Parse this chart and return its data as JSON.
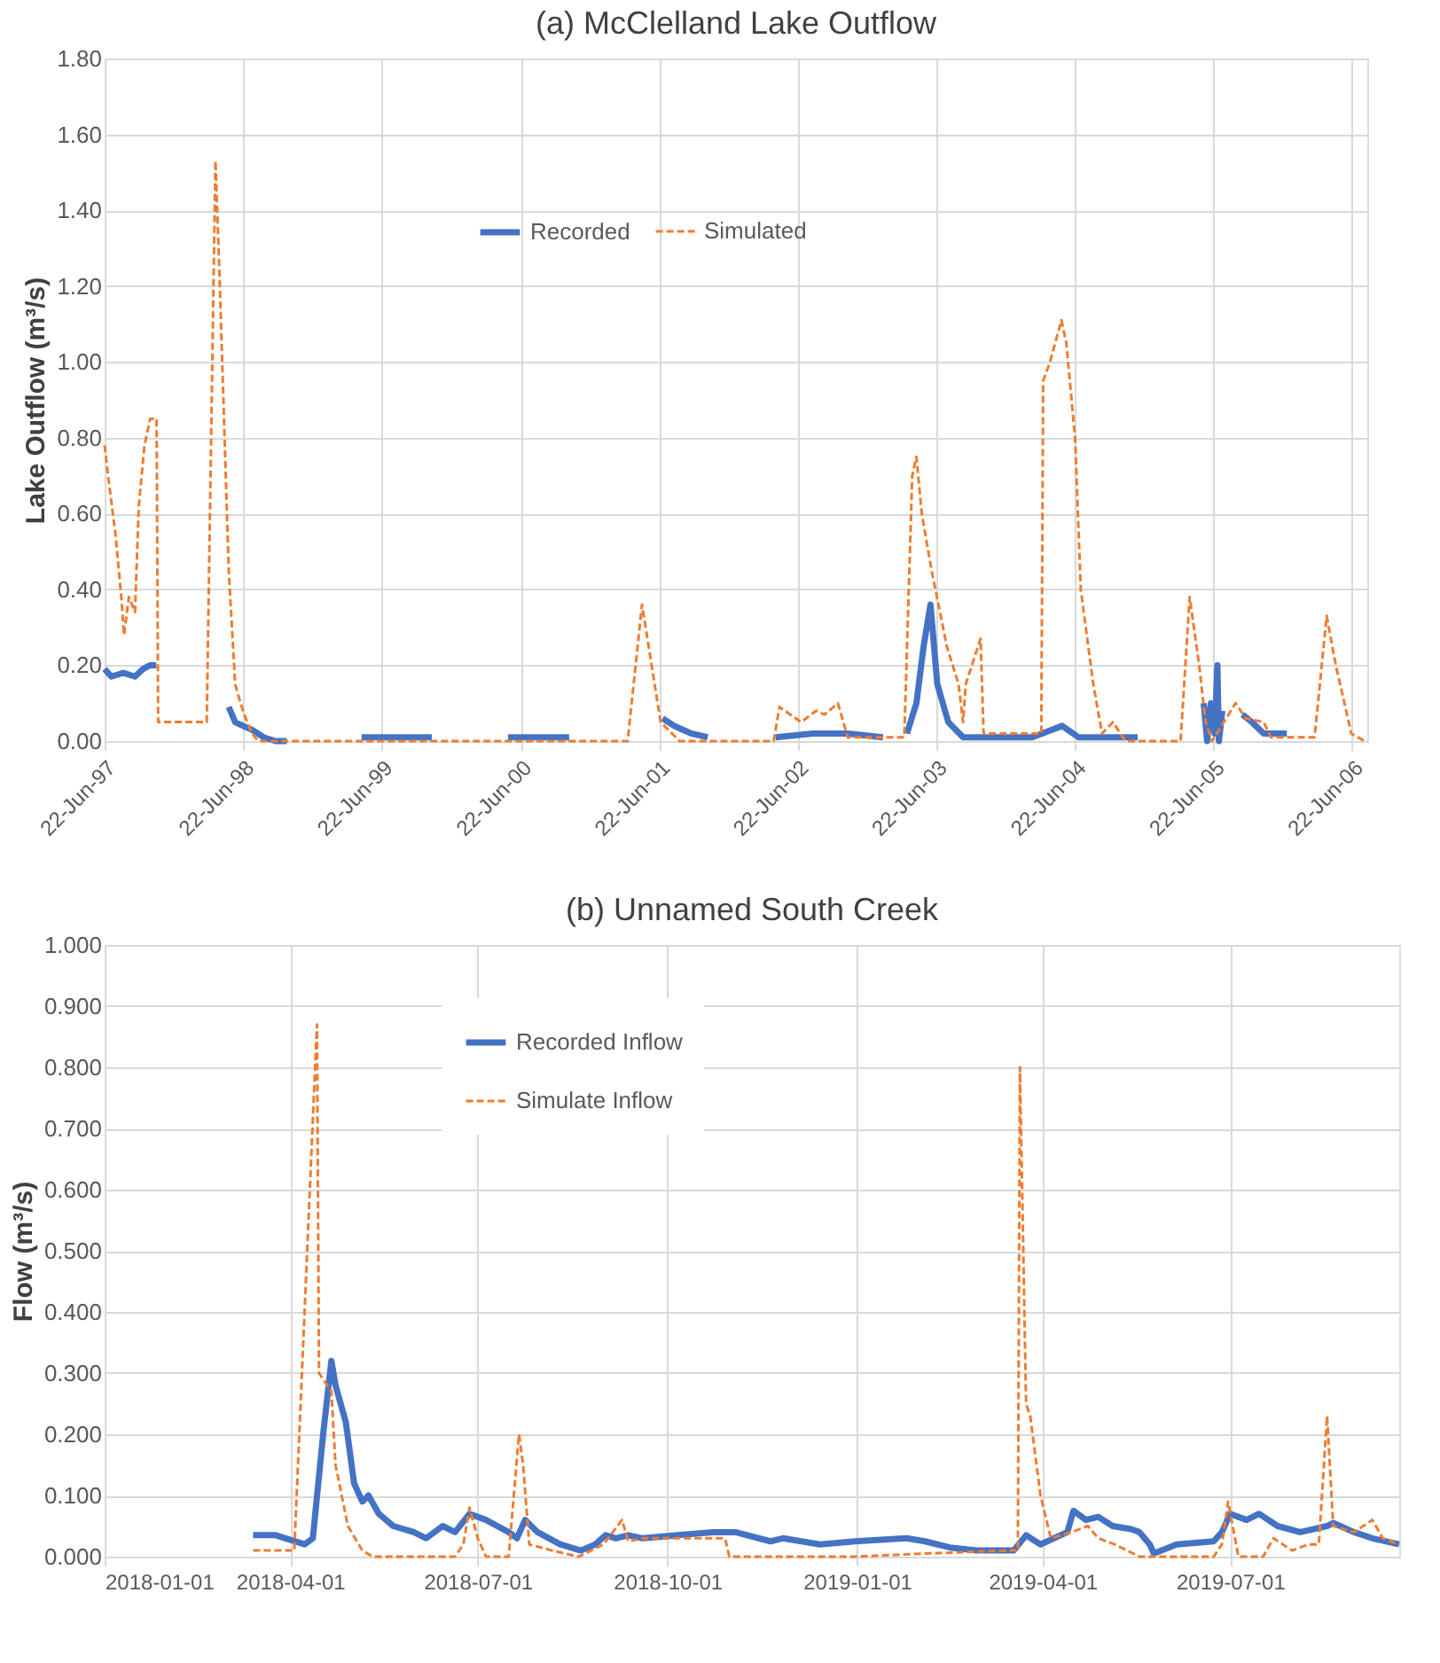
{
  "chart_data": [
    {
      "type": "line",
      "title": "(a) McClelland Lake Outflow",
      "ylabel": "Lake Outflow (m³/s)",
      "xlim": [
        "1997-06-22",
        "2006-08-01"
      ],
      "xticks": [
        {
          "value": "1997-06-22",
          "label": "22-Jun-97"
        },
        {
          "value": "1998-06-22",
          "label": "22-Jun-98"
        },
        {
          "value": "1999-06-22",
          "label": "22-Jun-99"
        },
        {
          "value": "2000-06-22",
          "label": "22-Jun-00"
        },
        {
          "value": "2001-06-22",
          "label": "22-Jun-01"
        },
        {
          "value": "2002-06-22",
          "label": "22-Jun-02"
        },
        {
          "value": "2003-06-22",
          "label": "22-Jun-03"
        },
        {
          "value": "2004-06-22",
          "label": "22-Jun-04"
        },
        {
          "value": "2005-06-22",
          "label": "22-Jun-05"
        },
        {
          "value": "2006-06-22",
          "label": "22-Jun-06"
        }
      ],
      "ylim": [
        0,
        1.8
      ],
      "yticks": [
        {
          "value": 0,
          "label": "0.00"
        },
        {
          "value": 0.2,
          "label": "0.20"
        },
        {
          "value": 0.4,
          "label": "0.40"
        },
        {
          "value": 0.6,
          "label": "0.60"
        },
        {
          "value": 0.8,
          "label": "0.80"
        },
        {
          "value": 1.0,
          "label": "1.00"
        },
        {
          "value": 1.2,
          "label": "1.20"
        },
        {
          "value": 1.4,
          "label": "1.40"
        },
        {
          "value": 1.6,
          "label": "1.60"
        },
        {
          "value": 1.8,
          "label": "1.80"
        }
      ],
      "grid": true,
      "legend": "top",
      "marker": "none",
      "series": [
        {
          "name": "Recorded",
          "color": "#4472c4",
          "line_style": "solid",
          "x": [
            "1997-06-22",
            "1997-07-10",
            "1997-08-10",
            "1997-09-10",
            "1997-10-01",
            "1997-10-20",
            "1997-11-05",
            "1998-01-01",
            "1998-05-15",
            "1998-06-01",
            "1998-06-22",
            "1998-07-15",
            "1998-08-15",
            "1998-09-15",
            "1998-10-15",
            "1999-01-01",
            "1999-04-30",
            "1999-11-01",
            "2000-01-01",
            "2000-05-20",
            "2000-10-28",
            "2001-01-01",
            "2001-07-01",
            "2001-08-01",
            "2001-09-15",
            "2001-10-28",
            "2002-01-01",
            "2002-04-25",
            "2002-08-01",
            "2002-11-01",
            "2003-02-02",
            "2003-03-01",
            "2003-04-06",
            "2003-05-01",
            "2003-05-20",
            "2003-06-07",
            "2003-06-25",
            "2003-07-24",
            "2003-09-01",
            "2004-03-01",
            "2004-05-19",
            "2004-07-01",
            "2004-12-04",
            "2005-02-01",
            "2005-05-27",
            "2005-06-05",
            "2005-06-15",
            "2005-06-25",
            "2005-07-02",
            "2005-07-06",
            "2005-07-15",
            "2005-08-10",
            "2005-09-06",
            "2005-10-01",
            "2005-11-01",
            "2006-01-01"
          ],
          "values": [
            0.19,
            0.17,
            0.18,
            0.17,
            0.19,
            0.2,
            0.2,
            null,
            0.09,
            0.05,
            0.04,
            0.03,
            0.01,
            0.0,
            0.0,
            null,
            0.01,
            0.01,
            null,
            0.01,
            0.01,
            null,
            0.06,
            0.04,
            0.02,
            0.01,
            null,
            0.01,
            0.02,
            0.02,
            0.01,
            null,
            0.02,
            0.1,
            0.25,
            0.36,
            0.15,
            0.05,
            0.01,
            0.01,
            0.04,
            0.01,
            0.01,
            null,
            0.1,
            0.0,
            0.1,
            0.02,
            0.2,
            0.0,
            0.08,
            null,
            0.07,
            0.05,
            0.02,
            0.02
          ]
        },
        {
          "name": "Simulated",
          "color": "#ed7d31",
          "line_style": "dashed",
          "x": [
            "1997-06-22",
            "1997-07-01",
            "1997-07-20",
            "1997-08-05",
            "1997-08-12",
            "1997-08-25",
            "1997-09-10",
            "1997-09-20",
            "1997-10-05",
            "1997-10-20",
            "1997-10-28",
            "1997-11-06",
            "1997-11-10",
            "1998-03-18",
            "1998-04-10",
            "1998-04-20",
            "1998-05-01",
            "1998-05-15",
            "1998-06-01",
            "1998-06-15",
            "1998-06-25",
            "1998-07-15",
            "1998-08-01",
            "2001-03-31",
            "2001-05-08",
            "2001-06-26",
            "2001-08-15",
            "2002-04-20",
            "2002-05-05",
            "2002-07-01",
            "2002-08-10",
            "2002-09-01",
            "2002-10-06",
            "2002-11-01",
            "2003-03-30",
            "2003-04-20",
            "2003-05-01",
            "2003-05-15",
            "2003-06-10",
            "2003-07-20",
            "2003-08-20",
            "2003-09-01",
            "2003-09-08",
            "2003-10-17",
            "2003-10-25",
            "2004-03-25",
            "2004-03-30",
            "2004-04-17",
            "2004-05-17",
            "2004-05-30",
            "2004-06-22",
            "2004-07-07",
            "2004-08-09",
            "2004-09-01",
            "2004-09-30",
            "2004-11-01",
            "2005-03-27",
            "2005-04-20",
            "2005-05-15",
            "2005-06-01",
            "2005-06-18",
            "2005-08-19",
            "2005-09-15",
            "2005-11-01",
            "2005-11-20",
            "2006-03-15",
            "2006-04-16",
            "2006-05-10",
            "2006-06-20",
            "2006-07-25"
          ],
          "values": [
            0.78,
            0.7,
            0.55,
            0.38,
            0.28,
            0.38,
            0.34,
            0.62,
            0.78,
            0.85,
            0.85,
            0.85,
            0.05,
            0.05,
            1.53,
            1.25,
            0.9,
            0.45,
            0.15,
            0.1,
            0.07,
            0.02,
            0.0,
            0.0,
            0.36,
            0.05,
            0.0,
            0.0,
            0.09,
            0.05,
            0.08,
            0.07,
            0.1,
            0.01,
            0.01,
            0.7,
            0.75,
            0.6,
            0.45,
            0.25,
            0.15,
            0.05,
            0.15,
            0.27,
            0.02,
            0.02,
            0.95,
            1.0,
            1.11,
            1.05,
            0.8,
            0.4,
            0.15,
            0.02,
            0.05,
            0.0,
            0.0,
            0.38,
            0.2,
            0.05,
            0.0,
            0.1,
            0.06,
            0.05,
            0.01,
            0.01,
            0.33,
            0.2,
            0.02,
            0.0
          ]
        }
      ]
    },
    {
      "type": "line",
      "title": "(b) Unnamed South Creek",
      "ylabel": "Flow (m³/s)",
      "xlim": [
        "2018-01-01",
        "2019-09-21"
      ],
      "xticks": [
        "2018-01-01",
        "2018-04-01",
        "2018-07-01",
        "2018-10-01",
        "2019-01-01",
        "2019-04-01",
        "2019-07-01"
      ],
      "ylim": [
        0,
        1.0
      ],
      "yticks": [
        {
          "value": 0,
          "label": "0.000"
        },
        {
          "value": 0.1,
          "label": "0.100"
        },
        {
          "value": 0.2,
          "label": "0.200"
        },
        {
          "value": 0.3,
          "label": "0.300"
        },
        {
          "value": 0.4,
          "label": "0.400"
        },
        {
          "value": 0.5,
          "label": "0.500"
        },
        {
          "value": 0.6,
          "label": "0.600"
        },
        {
          "value": 0.7,
          "label": "0.700"
        },
        {
          "value": 0.8,
          "label": "0.800"
        },
        {
          "value": 0.9,
          "label": "0.900"
        },
        {
          "value": 1.0,
          "label": "1.000"
        }
      ],
      "grid": true,
      "legend": "top left",
      "marker": "none",
      "series": [
        {
          "name": "Recorded Inflow",
          "color": "#4472c4",
          "line_style": "solid",
          "x": [
            "2018-03-14",
            "2018-03-25",
            "2018-04-08",
            "2018-04-12",
            "2018-04-17",
            "2018-04-21",
            "2018-04-23",
            "2018-04-28",
            "2018-05-02",
            "2018-05-06",
            "2018-05-09",
            "2018-05-14",
            "2018-05-21",
            "2018-05-31",
            "2018-06-06",
            "2018-06-14",
            "2018-06-20",
            "2018-06-27",
            "2018-07-05",
            "2018-07-16",
            "2018-07-20",
            "2018-07-24",
            "2018-07-30",
            "2018-08-10",
            "2018-08-20",
            "2018-08-27",
            "2018-09-01",
            "2018-09-06",
            "2018-09-12",
            "2018-09-19",
            "2018-10-06",
            "2018-10-23",
            "2018-11-03",
            "2018-11-20",
            "2018-11-26",
            "2018-12-14",
            "2018-12-31",
            "2019-01-25",
            "2019-02-03",
            "2019-02-15",
            "2019-02-28",
            "2019-03-18",
            "2019-03-24",
            "2019-03-31",
            "2019-04-13",
            "2019-04-16",
            "2019-04-22",
            "2019-04-28",
            "2019-05-05",
            "2019-05-14",
            "2019-05-18",
            "2019-05-23",
            "2019-05-25",
            "2019-06-05",
            "2019-06-23",
            "2019-06-27",
            "2019-07-01",
            "2019-07-09",
            "2019-07-15",
            "2019-07-24",
            "2019-08-04",
            "2019-08-17",
            "2019-08-20",
            "2019-08-30",
            "2019-09-08",
            "2019-09-21"
          ],
          "values": [
            0.035,
            0.035,
            0.02,
            0.03,
            0.2,
            0.32,
            0.28,
            0.22,
            0.12,
            0.09,
            0.1,
            0.07,
            0.05,
            0.04,
            0.03,
            0.05,
            0.04,
            0.07,
            0.06,
            0.04,
            0.03,
            0.06,
            0.04,
            0.02,
            0.01,
            0.02,
            0.035,
            0.03,
            0.035,
            0.03,
            0.035,
            0.04,
            0.04,
            0.025,
            0.03,
            0.02,
            0.025,
            0.03,
            0.025,
            0.015,
            0.01,
            0.01,
            0.035,
            0.02,
            0.04,
            0.075,
            0.06,
            0.065,
            0.05,
            0.045,
            0.04,
            0.02,
            0.005,
            0.02,
            0.025,
            0.04,
            0.07,
            0.06,
            0.07,
            0.05,
            0.04,
            0.05,
            0.055,
            0.04,
            0.03,
            0.02
          ]
        },
        {
          "name": "Simulate Inflow",
          "color": "#ed7d31",
          "line_style": "dashed",
          "x": [
            "2018-03-14",
            "2018-04-03",
            "2018-04-14",
            "2018-04-15",
            "2018-04-21",
            "2018-04-23",
            "2018-04-29",
            "2018-05-06",
            "2018-05-11",
            "2018-06-20",
            "2018-06-24",
            "2018-06-27",
            "2018-07-01",
            "2018-07-05",
            "2018-07-16",
            "2018-07-21",
            "2018-07-23",
            "2018-07-26",
            "2018-08-06",
            "2018-08-19",
            "2018-08-31",
            "2018-09-09",
            "2018-09-12",
            "2018-09-19",
            "2018-10-23",
            "2018-10-29",
            "2018-10-31",
            "2018-12-31",
            "2019-02-03",
            "2019-03-15",
            "2019-03-20",
            "2019-03-21",
            "2019-03-24",
            "2019-03-26",
            "2019-03-31",
            "2019-04-05",
            "2019-04-15",
            "2019-04-23",
            "2019-04-28",
            "2019-05-06",
            "2019-05-18",
            "2019-06-23",
            "2019-06-27",
            "2019-06-30",
            "2019-07-05",
            "2019-07-17",
            "2019-07-22",
            "2019-07-31",
            "2019-08-08",
            "2019-08-13",
            "2019-08-17",
            "2019-08-20",
            "2019-08-30",
            "2019-09-08",
            "2019-09-13",
            "2019-09-21"
          ],
          "values": [
            0.01,
            0.01,
            0.87,
            0.3,
            0.27,
            0.15,
            0.05,
            0.01,
            0.0,
            0.0,
            0.02,
            0.08,
            0.03,
            0.0,
            0.0,
            0.2,
            0.15,
            0.02,
            0.01,
            0.0,
            0.02,
            0.06,
            0.025,
            0.03,
            0.03,
            0.03,
            0.0,
            0.0,
            0.005,
            0.01,
            0.01,
            0.8,
            0.25,
            0.23,
            0.1,
            0.03,
            0.04,
            0.05,
            0.03,
            0.02,
            0.0,
            0.0,
            0.02,
            0.09,
            0.0,
            0.0,
            0.03,
            0.01,
            0.02,
            0.02,
            0.23,
            0.05,
            0.04,
            0.06,
            0.03,
            0.02
          ]
        }
      ]
    }
  ]
}
